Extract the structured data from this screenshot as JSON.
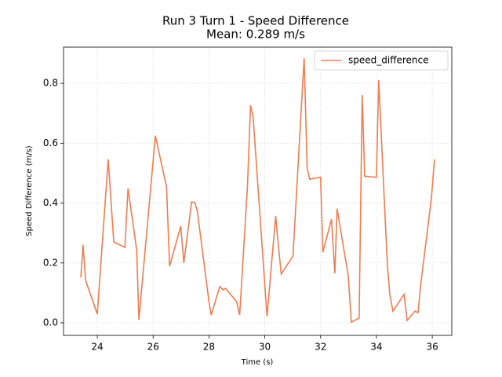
{
  "chart_data": {
    "type": "line",
    "title": "Run 3 Turn 1 - Speed Difference",
    "subtitle": "Mean: 0.289 m/s",
    "x_label": "Time (s)",
    "y_label": "Speed Difference (m/s)",
    "xlim": [
      22.79,
      36.7
    ],
    "ylim": [
      -0.042,
      0.921
    ],
    "xticks": [
      24,
      26,
      28,
      30,
      32,
      34,
      36
    ],
    "yticks": [
      {
        "value": 0,
        "label": "0.0"
      },
      0.2,
      0.4,
      0.6,
      0.8
    ],
    "grid": true,
    "legend": "upper right",
    "x": [
      23.41,
      23.49,
      23.58,
      24.0,
      24.39,
      24.59,
      24.99,
      25.1,
      25.41,
      25.49,
      26.08,
      26.48,
      26.59,
      26.99,
      27.1,
      27.38,
      27.49,
      27.58,
      28.0,
      28.08,
      28.39,
      28.51,
      28.59,
      28.99,
      29.1,
      29.38,
      29.49,
      29.58,
      30.08,
      30.39,
      30.51,
      30.59,
      31.01,
      31.41,
      31.52,
      31.61,
      32.0,
      32.08,
      32.39,
      32.51,
      32.59,
      32.99,
      33.1,
      33.38,
      33.49,
      33.58,
      34.0,
      34.08,
      34.39,
      34.48,
      34.59,
      34.99,
      35.1,
      35.38,
      35.49,
      35.58,
      35.97,
      36.08
    ],
    "series": [
      {
        "name": "speed_difference",
        "color": "#f07c50",
        "values": [
          0.152,
          0.26,
          0.142,
          0.029,
          0.546,
          0.27,
          0.252,
          0.449,
          0.244,
          0.01,
          0.625,
          0.454,
          0.189,
          0.323,
          0.2,
          0.404,
          0.402,
          0.375,
          0.071,
          0.026,
          0.121,
          0.11,
          0.115,
          0.071,
          0.026,
          0.457,
          0.727,
          0.69,
          0.021,
          0.357,
          0.236,
          0.163,
          0.223,
          0.884,
          0.514,
          0.48,
          0.486,
          0.236,
          0.346,
          0.165,
          0.381,
          0.157,
          0.002,
          0.016,
          0.761,
          0.49,
          0.486,
          0.811,
          0.197,
          0.094,
          0.039,
          0.095,
          0.008,
          0.039,
          0.034,
          0.123,
          0.417,
          0.546
        ]
      }
    ]
  }
}
